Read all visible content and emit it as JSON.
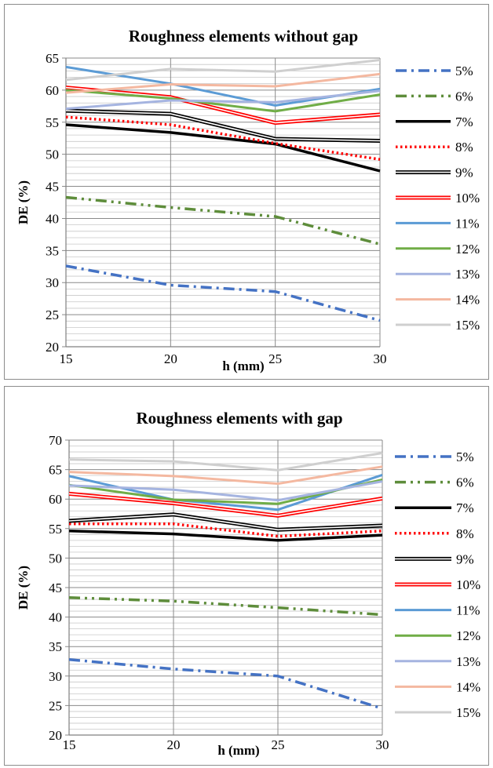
{
  "chart_data": [
    {
      "type": "line",
      "title": "Roughness elements without gap",
      "xlabel": "h (mm)",
      "ylabel": "DE (%)",
      "x": [
        15,
        20,
        25,
        30
      ],
      "xlim": [
        15,
        30
      ],
      "ylim": [
        20,
        65
      ],
      "y_major_step": 5,
      "grid": true,
      "legend": "right",
      "series": [
        {
          "name": "5%",
          "values": [
            32.6,
            29.6,
            28.6,
            24.1
          ],
          "color": "#4472c4",
          "style": "dashdot"
        },
        {
          "name": "6%",
          "values": [
            43.3,
            41.7,
            40.3,
            36.0
          ],
          "color": "#5e8d3b",
          "style": "dashdotdot"
        },
        {
          "name": "7%",
          "values": [
            54.6,
            53.4,
            51.6,
            47.4
          ],
          "color": "#000000",
          "style": "solid-thick"
        },
        {
          "name": "8%",
          "values": [
            55.8,
            54.6,
            51.7,
            49.2
          ],
          "color": "#ff0000",
          "style": "dotted"
        },
        {
          "name": "9%",
          "values": [
            56.8,
            56.3,
            52.4,
            52.1
          ],
          "color": "#000000",
          "style": "double"
        },
        {
          "name": "10%",
          "values": [
            60.4,
            58.9,
            54.9,
            56.2
          ],
          "color": "#ff0000",
          "style": "double"
        },
        {
          "name": "11%",
          "values": [
            63.6,
            61.0,
            57.6,
            60.2
          ],
          "color": "#5b9bd5",
          "style": "solid"
        },
        {
          "name": "12%",
          "values": [
            60.0,
            58.7,
            56.7,
            59.3
          ],
          "color": "#70ad47",
          "style": "solid"
        },
        {
          "name": "13%",
          "values": [
            57.1,
            58.4,
            58.1,
            59.9
          ],
          "color": "#a5b4e0",
          "style": "solid"
        },
        {
          "name": "14%",
          "values": [
            59.6,
            60.9,
            60.6,
            62.5
          ],
          "color": "#f4b8a0",
          "style": "solid"
        },
        {
          "name": "15%",
          "values": [
            61.6,
            63.3,
            62.9,
            64.7
          ],
          "color": "#cfcfcf",
          "style": "solid"
        }
      ]
    },
    {
      "type": "line",
      "title": "Roughness elements with gap",
      "xlabel": "h (mm)",
      "ylabel": "DE (%)",
      "x": [
        15,
        20,
        25,
        30
      ],
      "xlim": [
        15,
        30
      ],
      "ylim": [
        20,
        70
      ],
      "y_major_step": 5,
      "grid": true,
      "legend": "right",
      "series": [
        {
          "name": "5%",
          "values": [
            32.8,
            31.2,
            30.0,
            24.5
          ],
          "color": "#4472c4",
          "style": "dashdot"
        },
        {
          "name": "6%",
          "values": [
            43.3,
            42.7,
            41.6,
            40.4
          ],
          "color": "#5e8d3b",
          "style": "dashdotdot"
        },
        {
          "name": "7%",
          "values": [
            54.6,
            54.1,
            53.0,
            53.9
          ],
          "color": "#000000",
          "style": "solid-thick"
        },
        {
          "name": "8%",
          "values": [
            55.8,
            55.8,
            53.7,
            54.6
          ],
          "color": "#ff0000",
          "style": "dotted"
        },
        {
          "name": "9%",
          "values": [
            56.3,
            57.4,
            54.8,
            55.5
          ],
          "color": "#000000",
          "style": "double"
        },
        {
          "name": "10%",
          "values": [
            60.9,
            59.3,
            57.2,
            60.1
          ],
          "color": "#ff0000",
          "style": "double"
        },
        {
          "name": "11%",
          "values": [
            63.9,
            59.9,
            58.2,
            64.1
          ],
          "color": "#5b9bd5",
          "style": "solid"
        },
        {
          "name": "12%",
          "values": [
            62.4,
            59.9,
            59.2,
            63.3
          ],
          "color": "#70ad47",
          "style": "solid"
        },
        {
          "name": "13%",
          "values": [
            62.3,
            61.6,
            59.8,
            63.0
          ],
          "color": "#a5b4e0",
          "style": "solid"
        },
        {
          "name": "14%",
          "values": [
            64.6,
            63.9,
            62.6,
            65.5
          ],
          "color": "#f4b8a0",
          "style": "solid"
        },
        {
          "name": "15%",
          "values": [
            66.7,
            66.4,
            64.9,
            67.8
          ],
          "color": "#cfcfcf",
          "style": "solid"
        }
      ]
    }
  ]
}
